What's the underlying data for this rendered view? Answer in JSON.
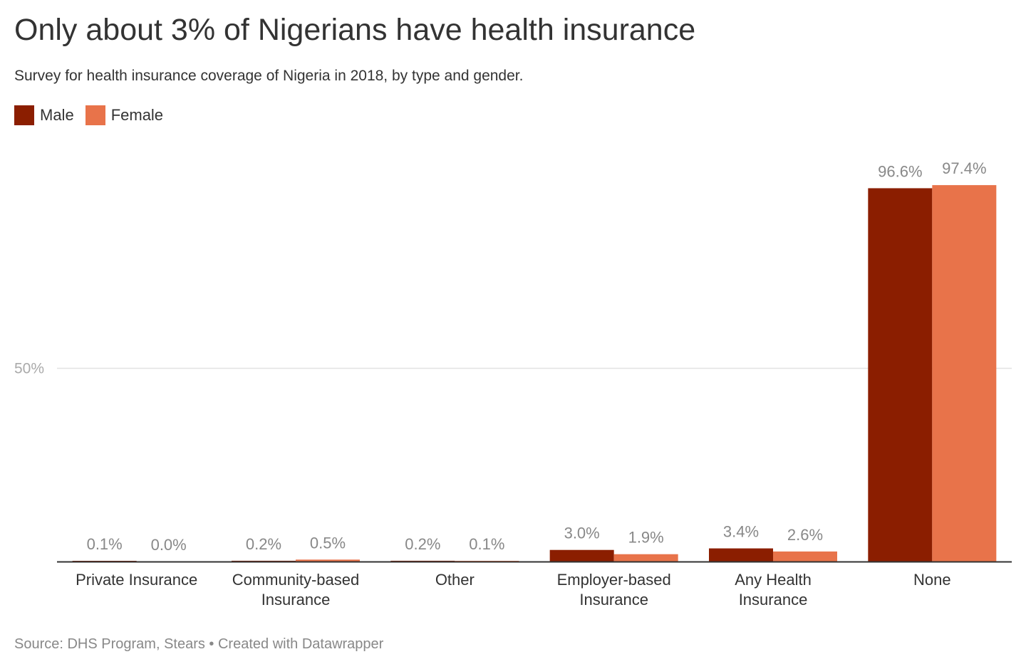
{
  "title": "Only about 3% of Nigerians have health insurance",
  "subtitle": "Survey for health insurance coverage of Nigeria in 2018, by type and gender.",
  "footer": {
    "source": "Source: DHS Program, Stears • Created with Datawrapper"
  },
  "chart_data": {
    "type": "bar",
    "title": "Only about 3% of Nigerians have health insurance",
    "subtitle": "Survey for health insurance coverage of Nigeria in 2018, by type and gender.",
    "categories": [
      [
        "Private Insurance"
      ],
      [
        "Community-based",
        "Insurance"
      ],
      [
        "Other"
      ],
      [
        "Employer-based",
        "Insurance"
      ],
      [
        "Any Health",
        "Insurance"
      ],
      [
        "None"
      ]
    ],
    "series": [
      {
        "name": "Male",
        "color": "#8b1e00",
        "values": [
          0.1,
          0.2,
          0.2,
          3.0,
          3.4,
          96.6
        ],
        "labels": [
          "0.1%",
          "0.2%",
          "0.2%",
          "3.0%",
          "3.4%",
          "96.6%"
        ]
      },
      {
        "name": "Female",
        "color": "#e8734a",
        "values": [
          0.0,
          0.5,
          0.1,
          1.9,
          2.6,
          97.4
        ],
        "labels": [
          "0.0%",
          "0.5%",
          "0.1%",
          "1.9%",
          "2.6%",
          "97.4%"
        ]
      }
    ],
    "y_ticks": [
      {
        "value": 50,
        "label": "50%"
      }
    ],
    "ylim": [
      0,
      100
    ],
    "grid": true,
    "legend_placement": "top-left"
  }
}
